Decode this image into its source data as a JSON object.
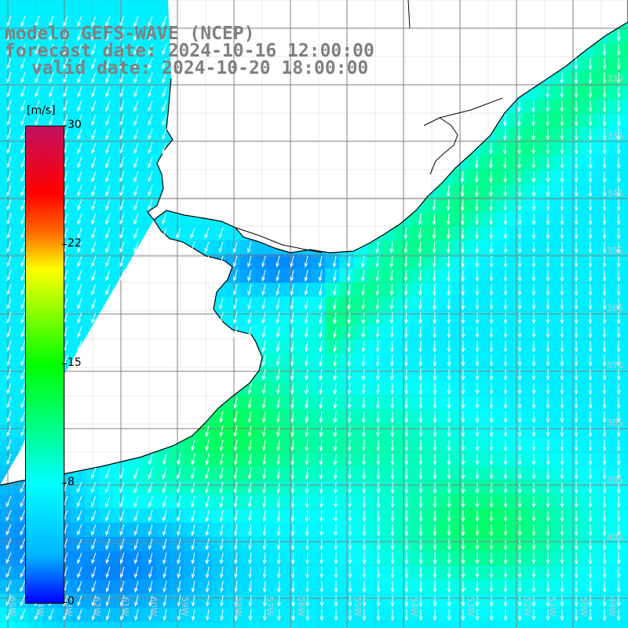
{
  "title": {
    "line1": "modelo GEFS-WAVE (NCEP)",
    "line2": "forecast date: 2024-10-16 12:00:00",
    "line3": "valid date: 2024-10-20 18:00:00"
  },
  "colorbar": {
    "unit": "[m/s]",
    "ticks": [
      "30",
      "22",
      "15",
      "8",
      "0"
    ],
    "tick_values": [
      30,
      22,
      15,
      8,
      0
    ],
    "min": 0,
    "max": 30,
    "colors": [
      "#0000ff",
      "#00b4ff",
      "#00ffff",
      "#00ff00",
      "#ffff00",
      "#ff6600",
      "#ff0000",
      "#c01060"
    ]
  },
  "lat_labels": [
    "32S",
    "33S",
    "34S",
    "35S",
    "36S",
    "37S",
    "38S",
    "39S",
    "40S"
  ],
  "lon_labels": [
    "65W",
    "64W",
    "63W",
    "62W",
    "61W",
    "60W",
    "59W",
    "58W",
    "57W",
    "56W",
    "55W",
    "54W",
    "53W",
    "52W",
    "51W",
    "50W",
    "49W"
  ],
  "map": {
    "land_color": "#ffffff",
    "coast_color": "#000000",
    "grid_color": "#808080",
    "arrow_color": "#ffffff",
    "wind_direction": "from north-east turning to north"
  }
}
